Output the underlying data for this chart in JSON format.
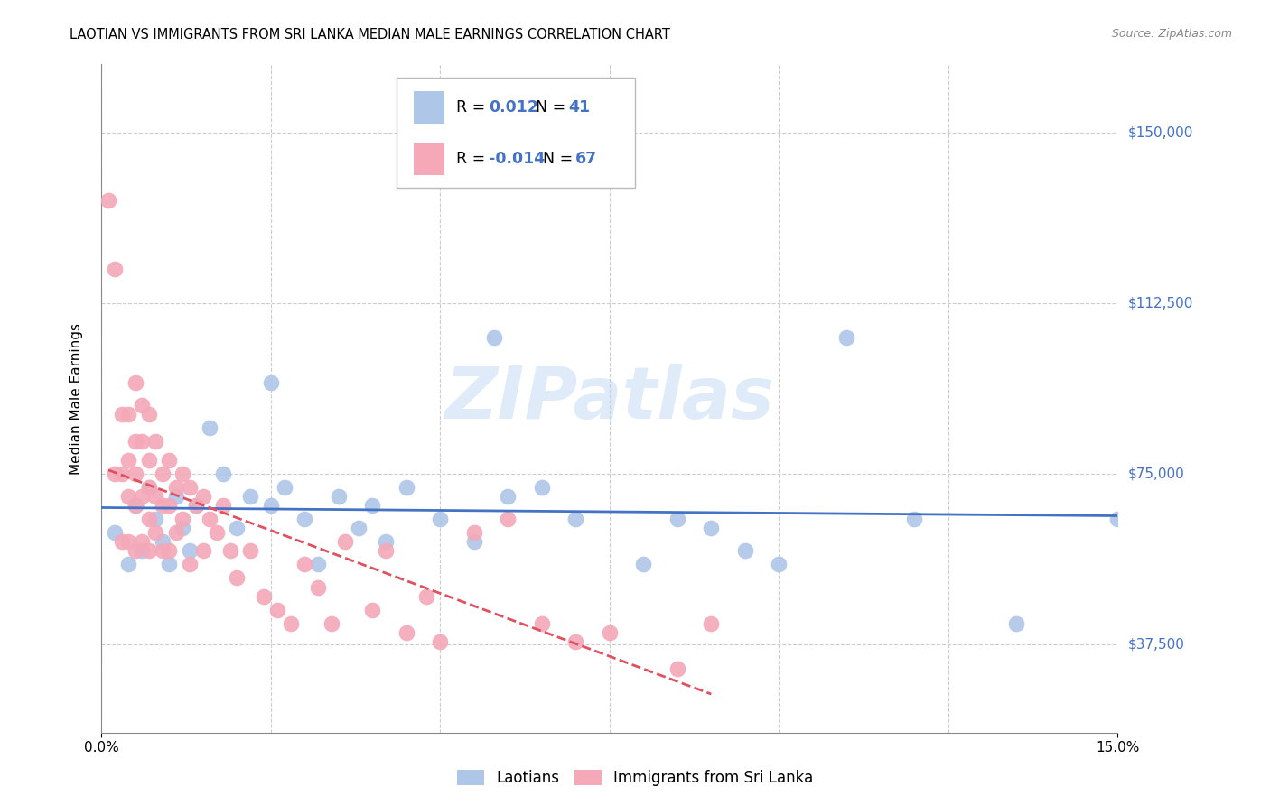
{
  "title": "LAOTIAN VS IMMIGRANTS FROM SRI LANKA MEDIAN MALE EARNINGS CORRELATION CHART",
  "source": "Source: ZipAtlas.com",
  "ylabel": "Median Male Earnings",
  "yticks": [
    37500,
    75000,
    112500,
    150000
  ],
  "ytick_labels": [
    "$37,500",
    "$75,000",
    "$112,500",
    "$150,000"
  ],
  "xlim": [
    0.0,
    0.15
  ],
  "ylim": [
    18000,
    165000
  ],
  "blue_color": "#aec6e8",
  "pink_color": "#f4a8b8",
  "trendline_blue": "#4472c4",
  "trendline_pink": "#e05060",
  "legend_R_blue": "0.012",
  "legend_N_blue": "41",
  "legend_R_pink": "-0.014",
  "legend_N_pink": "67",
  "watermark": "ZIPatlas",
  "blue_scatter_x": [
    0.002,
    0.004,
    0.005,
    0.006,
    0.007,
    0.008,
    0.009,
    0.01,
    0.011,
    0.012,
    0.013,
    0.014,
    0.016,
    0.018,
    0.02,
    0.022,
    0.025,
    0.025,
    0.027,
    0.03,
    0.032,
    0.035,
    0.038,
    0.04,
    0.042,
    0.045,
    0.05,
    0.055,
    0.058,
    0.06,
    0.065,
    0.07,
    0.08,
    0.085,
    0.09,
    0.095,
    0.1,
    0.11,
    0.12,
    0.135,
    0.15
  ],
  "blue_scatter_y": [
    62000,
    55000,
    68000,
    58000,
    72000,
    65000,
    60000,
    55000,
    70000,
    63000,
    58000,
    68000,
    85000,
    75000,
    63000,
    70000,
    95000,
    68000,
    72000,
    65000,
    55000,
    70000,
    63000,
    68000,
    60000,
    72000,
    65000,
    60000,
    105000,
    70000,
    72000,
    65000,
    55000,
    65000,
    63000,
    58000,
    55000,
    105000,
    65000,
    42000,
    65000
  ],
  "pink_scatter_x": [
    0.001,
    0.002,
    0.002,
    0.003,
    0.003,
    0.003,
    0.004,
    0.004,
    0.004,
    0.004,
    0.005,
    0.005,
    0.005,
    0.005,
    0.005,
    0.006,
    0.006,
    0.006,
    0.006,
    0.007,
    0.007,
    0.007,
    0.007,
    0.007,
    0.008,
    0.008,
    0.008,
    0.009,
    0.009,
    0.009,
    0.01,
    0.01,
    0.01,
    0.011,
    0.011,
    0.012,
    0.012,
    0.013,
    0.013,
    0.014,
    0.015,
    0.015,
    0.016,
    0.017,
    0.018,
    0.019,
    0.02,
    0.022,
    0.024,
    0.026,
    0.028,
    0.03,
    0.032,
    0.034,
    0.036,
    0.04,
    0.042,
    0.045,
    0.048,
    0.05,
    0.055,
    0.06,
    0.065,
    0.07,
    0.075,
    0.085,
    0.09
  ],
  "pink_scatter_y": [
    135000,
    120000,
    75000,
    88000,
    75000,
    60000,
    88000,
    78000,
    70000,
    60000,
    95000,
    82000,
    75000,
    68000,
    58000,
    90000,
    82000,
    70000,
    60000,
    88000,
    78000,
    72000,
    65000,
    58000,
    82000,
    70000,
    62000,
    75000,
    68000,
    58000,
    78000,
    68000,
    58000,
    72000,
    62000,
    75000,
    65000,
    72000,
    55000,
    68000,
    70000,
    58000,
    65000,
    62000,
    68000,
    58000,
    52000,
    58000,
    48000,
    45000,
    42000,
    55000,
    50000,
    42000,
    60000,
    45000,
    58000,
    40000,
    48000,
    38000,
    62000,
    65000,
    42000,
    38000,
    40000,
    32000,
    42000
  ]
}
